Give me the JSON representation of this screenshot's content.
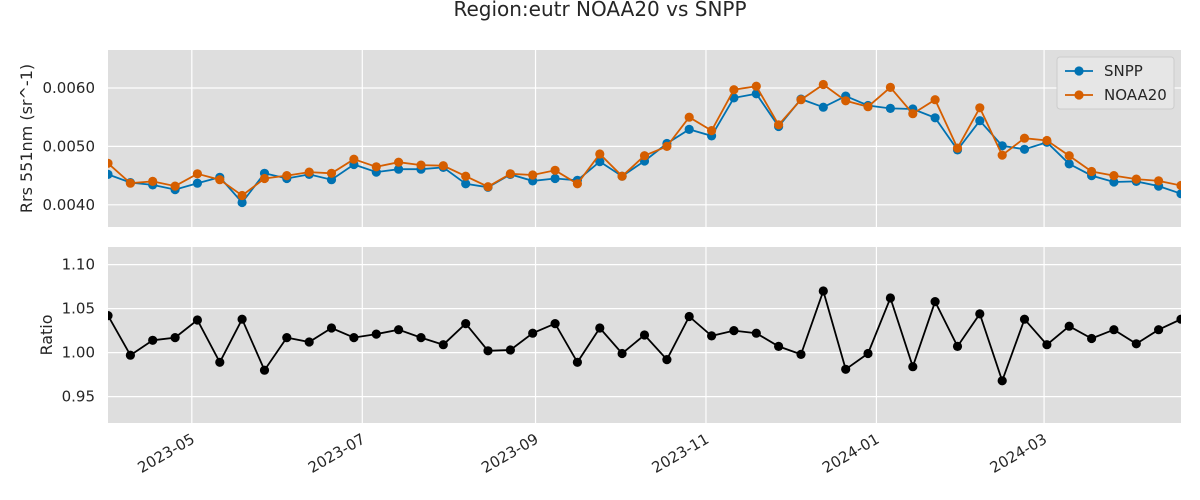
{
  "chart_data": {
    "title": "Region:eutr NOAA20 vs SNPP",
    "x": [
      "2023-04-01",
      "2023-04-09",
      "2023-04-17",
      "2023-04-25",
      "2023-05-03",
      "2023-05-11",
      "2023-05-19",
      "2023-05-27",
      "2023-06-04",
      "2023-06-12",
      "2023-06-20",
      "2023-06-28",
      "2023-07-06",
      "2023-07-14",
      "2023-07-22",
      "2023-07-30",
      "2023-08-07",
      "2023-08-15",
      "2023-08-23",
      "2023-08-31",
      "2023-09-08",
      "2023-09-16",
      "2023-09-24",
      "2023-10-02",
      "2023-10-10",
      "2023-10-18",
      "2023-10-26",
      "2023-11-03",
      "2023-11-11",
      "2023-11-19",
      "2023-11-27",
      "2023-12-05",
      "2023-12-13",
      "2023-12-21",
      "2023-12-29",
      "2024-01-06",
      "2024-01-14",
      "2024-01-22",
      "2024-01-30",
      "2024-02-07",
      "2024-02-15",
      "2024-02-23",
      "2024-03-02",
      "2024-03-10",
      "2024-03-18",
      "2024-03-26",
      "2024-04-03",
      "2024-04-11",
      "2024-04-19"
    ],
    "panels": [
      {
        "type": "line",
        "ylabel": "Rrs 551nm (sr^-1)",
        "ylim": [
          0.00362,
          0.00665
        ],
        "yticks": [
          0.004,
          0.005,
          0.006
        ],
        "ytick_labels": [
          "0.0040",
          "0.0050",
          "0.0060"
        ],
        "legend": "top-right",
        "series": [
          {
            "name": "SNPP",
            "color": "#0072b2",
            "values": [
              0.00452,
              0.00438,
              0.00434,
              0.00426,
              0.00437,
              0.00447,
              0.00404,
              0.00454,
              0.00445,
              0.00452,
              0.00443,
              0.00469,
              0.00456,
              0.00461,
              0.00461,
              0.00464,
              0.00436,
              0.0043,
              0.00452,
              0.00441,
              0.00445,
              0.00442,
              0.00474,
              0.00449,
              0.00475,
              0.00505,
              0.00529,
              0.00518,
              0.00583,
              0.0059,
              0.00534,
              0.00581,
              0.00567,
              0.00586,
              0.0057,
              0.00565,
              0.00564,
              0.00549,
              0.00494,
              0.00544,
              0.00501,
              0.00495,
              0.00507,
              0.0047,
              0.0045,
              0.00439,
              0.0044,
              0.00432,
              0.00419
            ]
          },
          {
            "name": "NOAA20",
            "color": "#d55e00",
            "values": [
              0.00471,
              0.00437,
              0.0044,
              0.00432,
              0.00453,
              0.00443,
              0.00416,
              0.00445,
              0.0045,
              0.00456,
              0.00454,
              0.00478,
              0.00465,
              0.00473,
              0.00468,
              0.00467,
              0.00449,
              0.00431,
              0.00453,
              0.00451,
              0.00459,
              0.00436,
              0.00487,
              0.00449,
              0.00484,
              0.005,
              0.0055,
              0.00527,
              0.00597,
              0.00603,
              0.00537,
              0.0058,
              0.00606,
              0.00578,
              0.00568,
              0.00601,
              0.00556,
              0.0058,
              0.00497,
              0.00566,
              0.00485,
              0.00514,
              0.0051,
              0.00484,
              0.00457,
              0.0045,
              0.00444,
              0.00441,
              0.00433
            ]
          }
        ]
      },
      {
        "type": "line",
        "ylabel": "Ratio",
        "ylim": [
          0.92,
          1.12
        ],
        "yticks": [
          0.95,
          1.0,
          1.05,
          1.1
        ],
        "ytick_labels": [
          "0.95",
          "1.00",
          "1.05",
          "1.10"
        ],
        "series": [
          {
            "name": "",
            "color": "#000000",
            "values": [
              1.042,
              0.997,
              1.014,
              1.017,
              1.037,
              0.989,
              1.038,
              0.98,
              1.017,
              1.012,
              1.028,
              1.017,
              1.021,
              1.026,
              1.017,
              1.009,
              1.033,
              1.002,
              1.003,
              1.022,
              1.033,
              0.989,
              1.028,
              0.999,
              1.02,
              0.992,
              1.041,
              1.019,
              1.025,
              1.022,
              1.007,
              0.998,
              1.07,
              0.981,
              0.999,
              1.062,
              0.984,
              1.058,
              1.007,
              1.044,
              0.968,
              1.038,
              1.009,
              1.03,
              1.016,
              1.026,
              1.01,
              1.026,
              1.038
            ]
          }
        ]
      }
    ],
    "xlim": [
      "2023-04-01",
      "2024-04-19"
    ],
    "xticks": [
      "2023-05-01",
      "2023-07-01",
      "2023-09-01",
      "2023-11-01",
      "2024-01-01",
      "2024-03-01"
    ],
    "xtick_labels": [
      "2023-05",
      "2023-07",
      "2023-09",
      "2023-11",
      "2024-01",
      "2024-03"
    ],
    "grid": true,
    "colors": {
      "background": "#dedede",
      "grid": "#ffffff"
    }
  }
}
